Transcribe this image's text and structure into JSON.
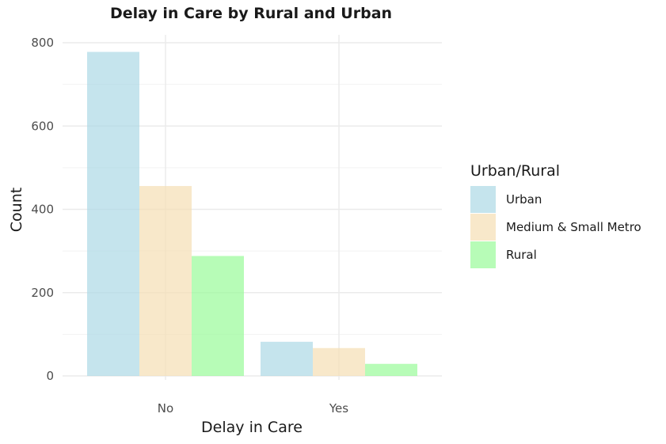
{
  "chart_data": {
    "type": "bar",
    "title": "Delay in Care by Rural and Urban",
    "xlabel": "Delay in Care",
    "ylabel": "Count",
    "categories": [
      "No",
      "Yes"
    ],
    "series": [
      {
        "name": "Urban",
        "values": [
          778,
          82
        ],
        "color": "#add8e6"
      },
      {
        "name": "Medium & Small Metro",
        "values": [
          456,
          67
        ],
        "color": "#f5deb3"
      },
      {
        "name": "Rural",
        "values": [
          288,
          29
        ],
        "color": "#98fb98"
      }
    ],
    "ylim": [
      0,
      800
    ],
    "yticks": [
      0,
      200,
      400,
      600,
      800
    ],
    "grid": true,
    "legend": {
      "title": "Urban/Rural",
      "position": "right"
    }
  }
}
